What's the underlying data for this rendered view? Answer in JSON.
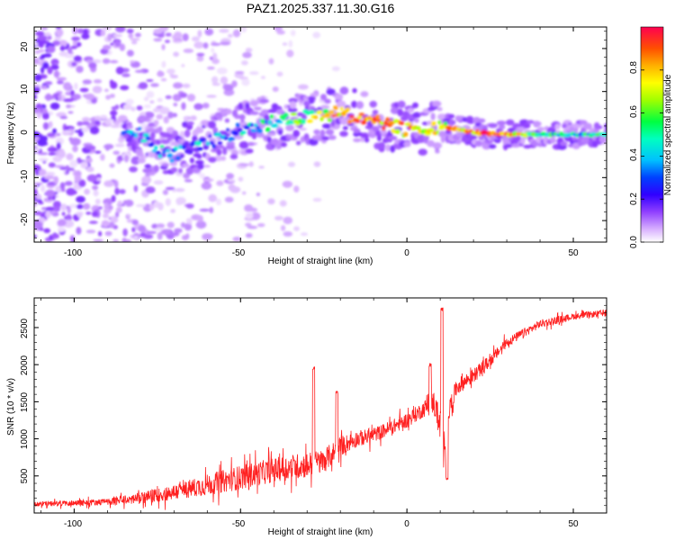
{
  "title": "PAZ1.2025.337.11.30.G16",
  "chart_data": [
    {
      "type": "heatmap",
      "xlabel": "Height of straight line (km)",
      "ylabel": "Frequency (Hz)",
      "xlim": [
        -112,
        60
      ],
      "ylim": [
        -25,
        25
      ],
      "xticks": [
        -100,
        -50,
        0,
        50
      ],
      "xtick_labels": [
        "-100",
        "-50",
        "0",
        "50"
      ],
      "yticks": [
        -20,
        -10,
        0,
        10,
        20
      ],
      "ytick_labels": [
        "-20",
        "-10",
        "0",
        "10",
        "20"
      ],
      "colorbar": {
        "label": "Normalized spectral amplitude",
        "range": [
          0.0,
          1.0
        ],
        "ticks": [
          0.0,
          0.2,
          0.4,
          0.6,
          0.8
        ],
        "tick_labels": [
          "0.0",
          "0.2",
          "0.4",
          "0.6",
          "0.8"
        ],
        "colormap": [
          "#ffffff",
          "#c080ff",
          "#6a00ff",
          "#0000ff",
          "#00e0ff",
          "#00ff60",
          "#d0ff00",
          "#ffb000",
          "#ff2040"
        ]
      },
      "ridge": {
        "x": [
          -100,
          -80,
          -72,
          -60,
          -50,
          -40,
          -30,
          -20,
          -10,
          0,
          10,
          20,
          30,
          40,
          50,
          60
        ],
        "freq": [
          -2,
          0,
          -5,
          -2,
          1,
          3,
          4,
          5,
          3,
          1,
          2,
          0.5,
          0,
          0,
          0,
          0
        ],
        "amplitude": [
          0.15,
          0.3,
          0.35,
          0.3,
          0.35,
          0.45,
          0.6,
          0.8,
          0.85,
          0.8,
          0.7,
          0.85,
          0.9,
          0.45,
          0.45,
          0.45
        ]
      }
    },
    {
      "type": "line",
      "xlabel": "Height of straight line (km)",
      "ylabel": "SNR (10 * v/v)",
      "xlim": [
        -112,
        60
      ],
      "ylim": [
        0,
        2900
      ],
      "xticks": [
        -100,
        -50,
        0,
        50
      ],
      "xtick_labels": [
        "-100",
        "-50",
        "0",
        "50"
      ],
      "yticks": [
        500,
        1000,
        1500,
        2000,
        2500
      ],
      "ytick_labels": [
        "500",
        "1000",
        "1500",
        "2000",
        "2500"
      ],
      "series": [
        {
          "name": "SNR",
          "color": "#ff2020",
          "trend_x": [
            -112,
            -90,
            -80,
            -70,
            -60,
            -50,
            -40,
            -30,
            -25,
            -20,
            -15,
            -10,
            -5,
            0,
            5,
            8,
            10,
            11,
            12,
            15,
            20,
            25,
            30,
            40,
            50,
            60
          ],
          "trend_y": [
            120,
            150,
            200,
            280,
            380,
            480,
            580,
            650,
            700,
            900,
            1000,
            1050,
            1150,
            1250,
            1400,
            1500,
            1200,
            800,
            1300,
            1700,
            1850,
            2050,
            2300,
            2550,
            2650,
            2700
          ],
          "noise_amplitude": [
            60,
            80,
            140,
            200,
            260,
            300,
            300,
            320,
            300,
            250,
            200,
            180,
            180,
            180,
            200,
            300,
            400,
            400,
            300,
            200,
            180,
            150,
            120,
            100,
            80,
            80
          ],
          "spikes": [
            {
              "x": -28,
              "y": 1950
            },
            {
              "x": -21,
              "y": 1620
            },
            {
              "x": 7,
              "y": 2000
            },
            {
              "x": 10.5,
              "y": 2750
            },
            {
              "x": 12,
              "y": 480
            }
          ]
        }
      ]
    }
  ]
}
